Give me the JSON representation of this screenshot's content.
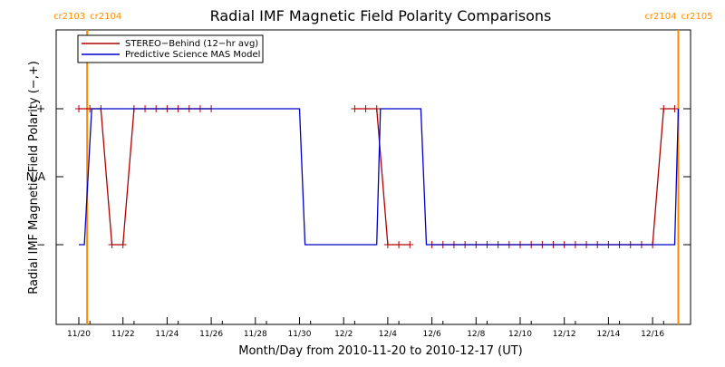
{
  "colors": {
    "stereo": "#b00000",
    "model": "#0000c8",
    "rotation": "#ff8c00",
    "axis": "#000000"
  },
  "chart_data": {
    "type": "line",
    "title": "Radial IMF Magnetic Field Polarity Comparisons",
    "xlabel": "Month/Day from 2010-11-20 to 2010-12-17 (UT)",
    "ylabel": "Radial IMF Magnetic Field Polarity (−,+)",
    "xlim": [
      "2010-11-20",
      "2010-12-17"
    ],
    "x_tick_labels": [
      "11/20",
      "11/22",
      "11/24",
      "11/26",
      "11/28",
      "11/30",
      "12/2",
      "12/4",
      "12/6",
      "12/8",
      "12/10",
      "12/12",
      "12/14",
      "12/16"
    ],
    "x_ticks": [
      "2010-11-20",
      "2010-11-22",
      "2010-11-24",
      "2010-11-26",
      "2010-11-28",
      "2010-11-30",
      "2010-12-02",
      "2010-12-04",
      "2010-12-06",
      "2010-12-08",
      "2010-12-10",
      "2010-12-12",
      "2010-12-14",
      "2010-12-16"
    ],
    "y_tick_labels": [
      "+",
      "N/A",
      "−"
    ],
    "y_ticks": [
      1,
      0,
      -1
    ],
    "ylim": [
      -2,
      2
    ],
    "grid": false,
    "legend_placement": "top-left",
    "rotation_markers": [
      {
        "date": "2010-11-20 09:00",
        "left_label": "cr2103",
        "right_label": "cr2104"
      },
      {
        "date": "2010-12-17 04:00",
        "left_label": "cr2104",
        "right_label": "cr2105"
      }
    ],
    "series": [
      {
        "name": "STEREO−Behind (12−hr avg)",
        "markers": true,
        "x": [
          "2010-11-20 00:00",
          "2010-11-20 12:00",
          "2010-11-21 00:00",
          "2010-11-21 12:00",
          "2010-11-22 00:00",
          "2010-11-22 12:00",
          "2010-11-23 00:00",
          "2010-11-23 12:00",
          "2010-11-24 00:00",
          "2010-11-24 12:00",
          "2010-11-25 00:00",
          "2010-11-25 12:00",
          "2010-11-26 00:00",
          "2010-11-26 12:00",
          "2010-11-27 00:00",
          "2010-11-27 12:00",
          "2010-11-28 00:00",
          "2010-11-28 12:00",
          "2010-11-29 00:00",
          "2010-11-29 12:00",
          "2010-11-30 00:00",
          "2010-11-30 12:00",
          "2010-12-01 00:00",
          "2010-12-01 12:00",
          "2010-12-02 00:00",
          "2010-12-02 12:00",
          "2010-12-03 00:00",
          "2010-12-03 12:00",
          "2010-12-04 00:00",
          "2010-12-04 12:00",
          "2010-12-05 00:00",
          "2010-12-05 12:00",
          "2010-12-06 00:00",
          "2010-12-06 12:00",
          "2010-12-07 00:00",
          "2010-12-07 12:00",
          "2010-12-08 00:00",
          "2010-12-08 12:00",
          "2010-12-09 00:00",
          "2010-12-09 12:00",
          "2010-12-10 00:00",
          "2010-12-10 12:00",
          "2010-12-11 00:00",
          "2010-12-11 12:00",
          "2010-12-12 00:00",
          "2010-12-12 12:00",
          "2010-12-13 00:00",
          "2010-12-13 12:00",
          "2010-12-14 00:00",
          "2010-12-14 12:00",
          "2010-12-15 00:00",
          "2010-12-15 12:00",
          "2010-12-16 00:00",
          "2010-12-16 12:00",
          "2010-12-17 00:00"
        ],
        "y": [
          1,
          1,
          1,
          -1,
          -1,
          1,
          1,
          1,
          1,
          1,
          1,
          1,
          1,
          null,
          null,
          null,
          null,
          null,
          null,
          null,
          null,
          null,
          null,
          null,
          null,
          1,
          1,
          1,
          -1,
          -1,
          -1,
          null,
          -1,
          -1,
          -1,
          -1,
          -1,
          -1,
          -1,
          -1,
          -1,
          -1,
          -1,
          -1,
          -1,
          -1,
          -1,
          -1,
          -1,
          -1,
          -1,
          -1,
          -1,
          1,
          1
        ]
      },
      {
        "name": "Predictive Science MAS Model",
        "markers": false,
        "x": [
          "2010-11-20 00:00",
          "2010-11-20 06:00",
          "2010-11-20 14:00",
          "2010-11-30 00:00",
          "2010-11-30 06:00",
          "2010-12-03 12:00",
          "2010-12-03 16:00",
          "2010-12-05 12:00",
          "2010-12-05 18:00",
          "2010-12-17 00:00",
          "2010-12-17 04:00"
        ],
        "y": [
          -1,
          -1,
          1,
          1,
          -1,
          -1,
          1,
          1,
          -1,
          -1,
          1
        ]
      }
    ]
  }
}
